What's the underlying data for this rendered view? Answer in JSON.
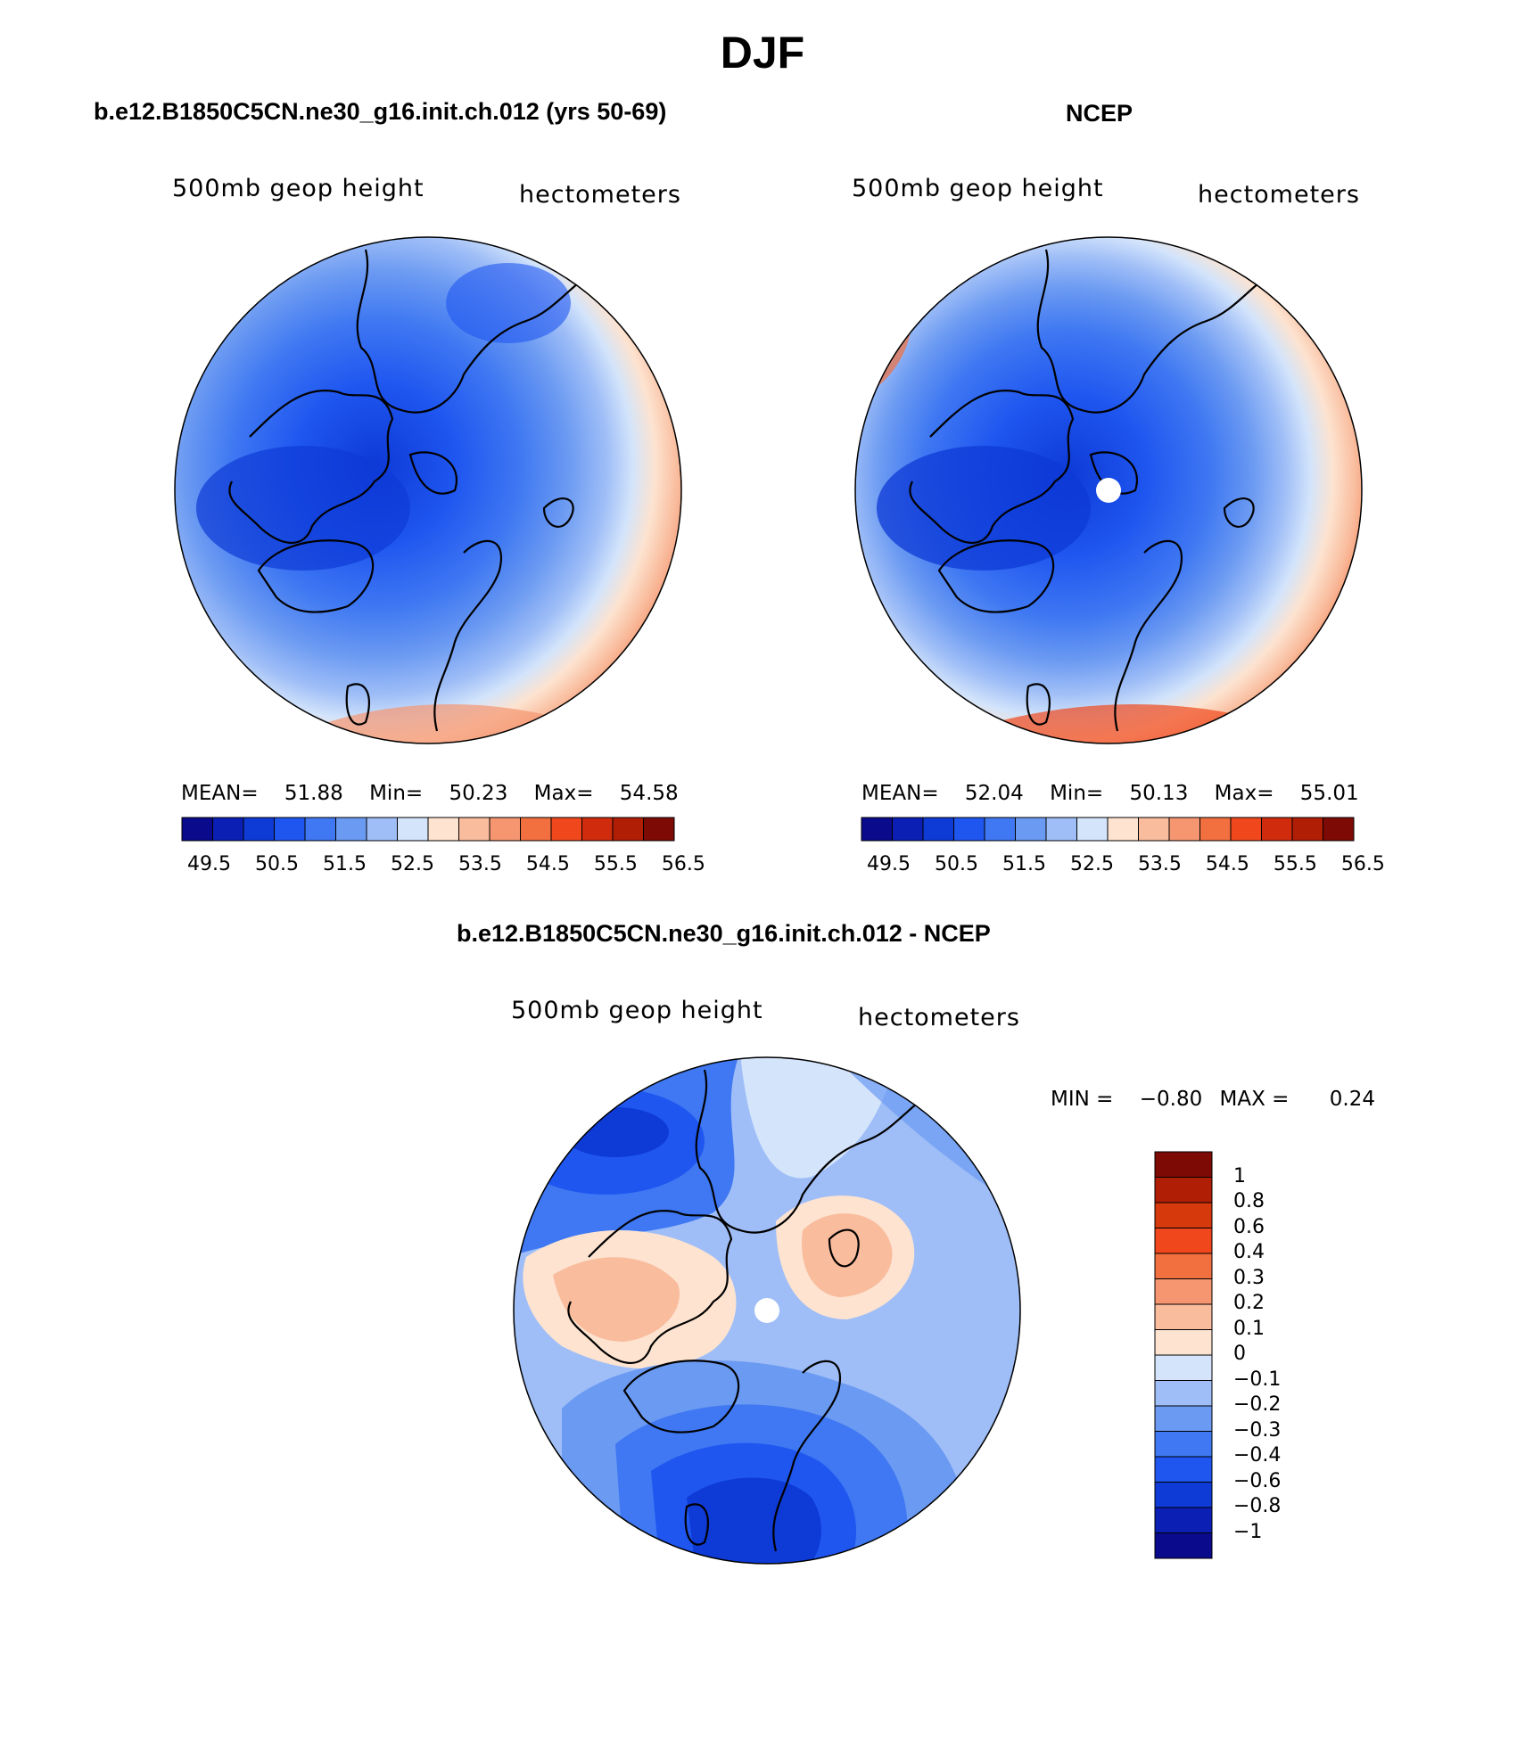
{
  "season": "DJF",
  "panels": [
    {
      "title": "b.e12.B1850C5CN.ne30_g16.init.ch.012 (yrs 50-69)",
      "field_label": "500mb geop height",
      "units": "hectometers",
      "stats": {
        "mean_label": "MEAN=",
        "mean": "51.88",
        "min_label": "Min=",
        "min": "50.23",
        "max_label": "Max=",
        "max": "54.58"
      }
    },
    {
      "title": "NCEP",
      "field_label": "500mb geop height",
      "units": "hectometers",
      "stats": {
        "mean_label": "MEAN=",
        "mean": "52.04",
        "min_label": "Min=",
        "min": "50.13",
        "max_label": "Max=",
        "max": "55.01"
      }
    },
    {
      "title": "b.e12.B1850C5CN.ne30_g16.init.ch.012 - NCEP",
      "field_label": "500mb geop height",
      "units": "hectometers",
      "stats": {
        "min_label": "MIN =",
        "min": "−0.80",
        "max_label": "MAX =",
        "max": "0.24"
      }
    }
  ],
  "colorbar_abs": {
    "tick_labels": [
      "49.5",
      "50.5",
      "51.5",
      "52.5",
      "53.5",
      "54.5",
      "55.5",
      "56.5"
    ],
    "colors": [
      "#0a0a8c",
      "#0b1fb5",
      "#0e3ad6",
      "#1f56f0",
      "#3f78f2",
      "#6b9af2",
      "#9fbef7",
      "#d3e4fb",
      "#fde3d0",
      "#f9bc9d",
      "#f59670",
      "#f2703f",
      "#f0481c",
      "#d02b0c",
      "#b01e06",
      "#7e0a05"
    ]
  },
  "colorbar_diff": {
    "levels": [
      "1",
      "0.8",
      "0.6",
      "0.4",
      "0.3",
      "0.2",
      "0.1",
      "0",
      "−0.1",
      "−0.2",
      "−0.3",
      "−0.4",
      "−0.6",
      "−0.8",
      "−1"
    ],
    "colors": [
      "#7e0a05",
      "#b01e06",
      "#d63a0c",
      "#f0481c",
      "#f2703f",
      "#f59670",
      "#f9bc9d",
      "#fde3d0",
      "#d3e4fb",
      "#9fbef7",
      "#6b9af2",
      "#3f78f2",
      "#1f56f0",
      "#0e3ad6",
      "#0b1fb5",
      "#0a0a8c"
    ]
  }
}
